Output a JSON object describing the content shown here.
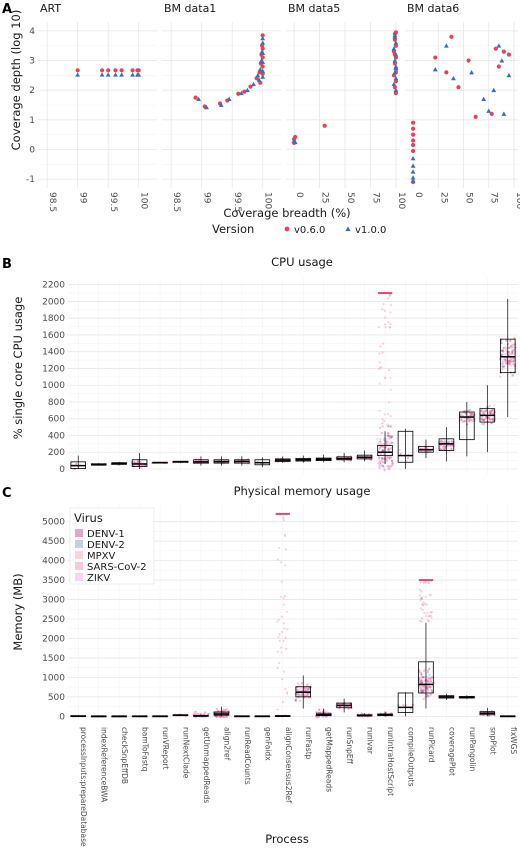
{
  "colors": {
    "v060": "#e8425a",
    "v100": "#3a70b0",
    "box": "#000000"
  },
  "panelA": {
    "letter": "A",
    "ylabel": "Coverage depth (log 10)",
    "xlabel": "Coverage breadth (%)",
    "legend_title": "Version",
    "legend": [
      {
        "label": "v0.6.0",
        "key": "v060"
      },
      {
        "label": "v1.0.0",
        "key": "v100"
      }
    ],
    "ylim": [
      -1.3,
      4.3
    ],
    "yticks": [
      -1,
      0,
      1,
      2,
      3,
      4
    ],
    "facets": [
      {
        "label": "ART",
        "xlim": [
          98.35,
          100.3
        ],
        "xticks": [
          98.5,
          99,
          99.5,
          100
        ],
        "v060": [
          [
            99,
            2.67
          ],
          [
            99.4,
            2.67
          ],
          [
            99.5,
            2.67
          ],
          [
            99.62,
            2.67
          ],
          [
            99.72,
            2.67
          ],
          [
            99.9,
            2.67
          ],
          [
            99.98,
            2.67
          ],
          [
            100,
            2.67
          ]
        ],
        "v100": [
          [
            99,
            2.52
          ],
          [
            99.4,
            2.52
          ],
          [
            99.5,
            2.52
          ],
          [
            99.62,
            2.52
          ],
          [
            99.72,
            2.52
          ],
          [
            99.9,
            2.52
          ],
          [
            99.98,
            2.52
          ],
          [
            100,
            2.52
          ]
        ]
      },
      {
        "label": "BM data1",
        "xlim": [
          98.35,
          100.3
        ],
        "xticks": [
          98.5,
          99,
          99.5,
          100
        ],
        "v060": [
          [
            98.9,
            1.75
          ],
          [
            99.05,
            1.45
          ],
          [
            99.3,
            1.55
          ],
          [
            99.42,
            1.65
          ],
          [
            99.6,
            1.88
          ],
          [
            99.7,
            1.95
          ],
          [
            99.8,
            2.12
          ],
          [
            99.9,
            2.4
          ],
          [
            99.95,
            2.6
          ],
          [
            99.97,
            2.9
          ],
          [
            99.98,
            3.2
          ],
          [
            99.99,
            3.5
          ],
          [
            100,
            3.85
          ],
          [
            100,
            2.8
          ],
          [
            100,
            3.1
          ],
          [
            100,
            3.4
          ],
          [
            99.96,
            2.25
          ],
          [
            100,
            2.55
          ]
        ],
        "v100": [
          [
            98.95,
            1.7
          ],
          [
            99.08,
            1.42
          ],
          [
            99.32,
            1.5
          ],
          [
            99.45,
            1.7
          ],
          [
            99.65,
            1.9
          ],
          [
            99.75,
            2.0
          ],
          [
            99.85,
            2.2
          ],
          [
            99.92,
            2.5
          ],
          [
            99.96,
            2.7
          ],
          [
            99.98,
            3.0
          ],
          [
            99.99,
            3.3
          ],
          [
            100,
            3.6
          ],
          [
            100,
            3.75
          ],
          [
            100,
            2.65
          ],
          [
            100,
            2.95
          ],
          [
            100,
            3.25
          ],
          [
            99.94,
            2.35
          ],
          [
            100,
            2.45
          ]
        ]
      },
      {
        "label": "BM data5",
        "xlim": [
          -8,
          104
        ],
        "xticks": [
          0,
          25,
          50,
          75,
          100
        ],
        "v060": [
          [
            0,
            0.35
          ],
          [
            1,
            0.42
          ],
          [
            0,
            0.22
          ],
          [
            30,
            0.8
          ],
          [
            99,
            3.9
          ],
          [
            99,
            3.7
          ],
          [
            100,
            3.5
          ],
          [
            98,
            3.3
          ],
          [
            100,
            3.1
          ],
          [
            99,
            2.9
          ],
          [
            100,
            2.7
          ],
          [
            98,
            2.5
          ],
          [
            100,
            2.3
          ],
          [
            99,
            2.1
          ],
          [
            100,
            1.9
          ],
          [
            100,
            3.95
          ],
          [
            99,
            3.2
          ],
          [
            100,
            2.6
          ]
        ],
        "v100": [
          [
            0,
            0.3
          ],
          [
            1,
            0.25
          ],
          [
            99,
            3.8
          ],
          [
            100,
            3.6
          ],
          [
            98,
            3.4
          ],
          [
            100,
            3.2
          ],
          [
            99,
            3.0
          ],
          [
            100,
            2.8
          ],
          [
            99,
            2.6
          ],
          [
            100,
            2.4
          ],
          [
            98,
            2.2
          ],
          [
            100,
            2.0
          ],
          [
            99,
            3.85
          ],
          [
            100,
            2.75
          ]
        ]
      },
      {
        "label": "BM data6",
        "xlim": [
          -8,
          104
        ],
        "xticks": [
          0,
          25,
          50,
          75,
          100
        ],
        "v060": [
          [
            0,
            0.9
          ],
          [
            0,
            0.7
          ],
          [
            0,
            0.5
          ],
          [
            0,
            0.3
          ],
          [
            0,
            0.15
          ],
          [
            0,
            -0.05
          ],
          [
            0,
            -1.1
          ],
          [
            22,
            3.1
          ],
          [
            33,
            2.6
          ],
          [
            38,
            3.8
          ],
          [
            45,
            2.1
          ],
          [
            55,
            3.0
          ],
          [
            62,
            1.1
          ],
          [
            78,
            1.2
          ],
          [
            82,
            3.4
          ],
          [
            85,
            2.8
          ],
          [
            90,
            3.3
          ],
          [
            95,
            3.2
          ]
        ],
        "v100": [
          [
            0,
            -0.3
          ],
          [
            0,
            -0.55
          ],
          [
            0,
            -0.75
          ],
          [
            0,
            -0.95
          ],
          [
            0,
            -1.05
          ],
          [
            22,
            2.7
          ],
          [
            33,
            3.5
          ],
          [
            40,
            2.4
          ],
          [
            58,
            2.6
          ],
          [
            70,
            1.7
          ],
          [
            75,
            1.3
          ],
          [
            80,
            2.0
          ],
          [
            85,
            3.5
          ],
          [
            90,
            1.2
          ],
          [
            95,
            2.5
          ],
          [
            88,
            3.0
          ]
        ]
      }
    ]
  },
  "panelB": {
    "letter": "B",
    "title": "CPU usage",
    "ylabel": "% single core CPU usage",
    "ylim": [
      -60,
      2280
    ],
    "yticks": [
      0,
      200,
      400,
      600,
      800,
      1000,
      1200,
      1400,
      1600,
      1800,
      2000,
      2200
    ],
    "boxes": [
      {
        "q1": 5,
        "med": 40,
        "q3": 85,
        "lo": 0,
        "hi": 160,
        "n": 6,
        "spread": 50
      },
      {
        "q1": 45,
        "med": 55,
        "q3": 62,
        "lo": 40,
        "hi": 70,
        "n": 10,
        "spread": 10
      },
      {
        "q1": 55,
        "med": 65,
        "q3": 75,
        "lo": 45,
        "hi": 85,
        "n": 12,
        "spread": 12
      },
      {
        "q1": 30,
        "med": 60,
        "q3": 110,
        "lo": 0,
        "hi": 190,
        "n": 40,
        "spread": 50
      },
      {
        "q1": 70,
        "med": 75,
        "q3": 80,
        "lo": 65,
        "hi": 85,
        "n": 8,
        "spread": 6
      },
      {
        "q1": 80,
        "med": 85,
        "q3": 92,
        "lo": 70,
        "hi": 100,
        "n": 10,
        "spread": 8
      },
      {
        "q1": 70,
        "med": 85,
        "q3": 110,
        "lo": 40,
        "hi": 150,
        "n": 30,
        "spread": 30
      },
      {
        "q1": 70,
        "med": 88,
        "q3": 110,
        "lo": 40,
        "hi": 150,
        "n": 30,
        "spread": 30
      },
      {
        "q1": 70,
        "med": 90,
        "q3": 110,
        "lo": 40,
        "hi": 150,
        "n": 30,
        "spread": 30
      },
      {
        "q1": 50,
        "med": 75,
        "q3": 110,
        "lo": 20,
        "hi": 140,
        "n": 6,
        "spread": 30
      },
      {
        "q1": 90,
        "med": 105,
        "q3": 120,
        "lo": 70,
        "hi": 150,
        "n": 30,
        "spread": 20
      },
      {
        "q1": 95,
        "med": 110,
        "q3": 125,
        "lo": 75,
        "hi": 160,
        "n": 30,
        "spread": 20
      },
      {
        "q1": 100,
        "med": 115,
        "q3": 130,
        "lo": 80,
        "hi": 170,
        "n": 30,
        "spread": 20
      },
      {
        "q1": 110,
        "med": 125,
        "q3": 145,
        "lo": 80,
        "hi": 190,
        "n": 35,
        "spread": 25
      },
      {
        "q1": 120,
        "med": 140,
        "q3": 165,
        "lo": 90,
        "hi": 220,
        "n": 35,
        "spread": 30
      },
      {
        "q1": 160,
        "med": 200,
        "q3": 280,
        "lo": 60,
        "hi": 450,
        "n": 120,
        "spread": 400,
        "hiOutliers": 2100
      },
      {
        "q1": 80,
        "med": 160,
        "q3": 450,
        "lo": 0,
        "hi": 480,
        "n": 5,
        "spread": 150
      },
      {
        "q1": 200,
        "med": 230,
        "q3": 270,
        "lo": 130,
        "hi": 350,
        "n": 40,
        "spread": 40
      },
      {
        "q1": 220,
        "med": 300,
        "q3": 360,
        "lo": 90,
        "hi": 500,
        "n": 70,
        "spread": 80
      },
      {
        "q1": 350,
        "med": 620,
        "q3": 680,
        "lo": 150,
        "hi": 800,
        "n": 60,
        "spread": 120
      },
      {
        "q1": 560,
        "med": 640,
        "q3": 720,
        "lo": 200,
        "hi": 1000,
        "n": 80,
        "spread": 120
      },
      {
        "q1": 1150,
        "med": 1340,
        "q3": 1550,
        "lo": 620,
        "hi": 2030,
        "n": 120,
        "spread": 250
      }
    ]
  },
  "panelC": {
    "letter": "C",
    "title": "Physical memory usage",
    "ylabel": "Memory (MB)",
    "xlabel": "Process",
    "ylim": [
      -120,
      5480
    ],
    "yticks": [
      0,
      500,
      1000,
      1500,
      2000,
      2500,
      3000,
      3500,
      4000,
      4500,
      5000
    ],
    "legend_title": "Virus",
    "legend": [
      "DENV-1",
      "DENV-2",
      "MPXV",
      "SARS-CoV-2",
      "ZIKV"
    ],
    "legend_colors": [
      "#c86aa6",
      "#9fb3c8",
      "#f4b5cc",
      "#f5a3c7",
      "#f2b8ec"
    ],
    "processes": [
      "processInputs:prepareDatabase",
      "indexReferenceBWA",
      "checkSnpEffDB",
      "bamToFastq",
      "runVReport",
      "runNextClade",
      "getUnmappedReads",
      "align2ref",
      "runReadCounts",
      "genFaidx",
      "alignConsensus2Ref",
      "runFastp",
      "getMappedReads",
      "runSnpEff",
      "runIvar",
      "runIntraHostScript",
      "compileOutputs",
      "runPicard",
      "coveragePlot",
      "runPangolin",
      "snpPlot",
      "fixWGS"
    ],
    "boxes": [
      {
        "q1": 5,
        "med": 8,
        "q3": 12,
        "lo": 0,
        "hi": 20,
        "n": 10,
        "spread": 5
      },
      {
        "q1": 2,
        "med": 4,
        "q3": 6,
        "lo": 0,
        "hi": 10,
        "n": 10,
        "spread": 3
      },
      {
        "q1": 2,
        "med": 4,
        "q3": 6,
        "lo": 0,
        "hi": 10,
        "n": 10,
        "spread": 3
      },
      {
        "q1": 2,
        "med": 4,
        "q3": 8,
        "lo": 0,
        "hi": 15,
        "n": 12,
        "spread": 4
      },
      {
        "q1": 3,
        "med": 5,
        "q3": 8,
        "lo": 0,
        "hi": 12,
        "n": 10,
        "spread": 4
      },
      {
        "q1": 20,
        "med": 30,
        "q3": 40,
        "lo": 10,
        "hi": 60,
        "n": 25,
        "spread": 15
      },
      {
        "q1": 5,
        "med": 10,
        "q3": 20,
        "lo": 0,
        "hi": 40,
        "n": 40,
        "spread": 120
      },
      {
        "q1": 30,
        "med": 60,
        "q3": 110,
        "lo": 0,
        "hi": 250,
        "n": 90,
        "spread": 160
      },
      {
        "q1": 3,
        "med": 5,
        "q3": 8,
        "lo": 0,
        "hi": 12,
        "n": 10,
        "spread": 4
      },
      {
        "q1": 3,
        "med": 5,
        "q3": 8,
        "lo": 0,
        "hi": 12,
        "n": 6,
        "spread": 4
      },
      {
        "q1": 5,
        "med": 10,
        "q3": 15,
        "lo": 0,
        "hi": 30,
        "n": 20,
        "spread": 10,
        "hiOutliers": 5200
      },
      {
        "q1": 500,
        "med": 620,
        "q3": 760,
        "lo": 200,
        "hi": 1050,
        "n": 100,
        "spread": 250
      },
      {
        "q1": 20,
        "med": 40,
        "q3": 80,
        "lo": 0,
        "hi": 200,
        "n": 50,
        "spread": 150
      },
      {
        "q1": 220,
        "med": 280,
        "q3": 340,
        "lo": 100,
        "hi": 450,
        "n": 60,
        "spread": 80
      },
      {
        "q1": 10,
        "med": 20,
        "q3": 40,
        "lo": 0,
        "hi": 80,
        "n": 40,
        "spread": 60
      },
      {
        "q1": 20,
        "med": 40,
        "q3": 60,
        "lo": 0,
        "hi": 120,
        "n": 40,
        "spread": 50
      },
      {
        "q1": 100,
        "med": 230,
        "q3": 600,
        "lo": 0,
        "hi": 620,
        "n": 5,
        "spread": 200
      },
      {
        "q1": 600,
        "med": 820,
        "q3": 1400,
        "lo": 200,
        "hi": 2400,
        "n": 130,
        "spread": 400,
        "hiOutliers": 3500
      },
      {
        "q1": 470,
        "med": 500,
        "q3": 530,
        "lo": 420,
        "hi": 580,
        "n": 40,
        "spread": 30
      },
      {
        "q1": 470,
        "med": 490,
        "q3": 510,
        "lo": 440,
        "hi": 540,
        "n": 30,
        "spread": 20
      },
      {
        "q1": 40,
        "med": 80,
        "q3": 120,
        "lo": 0,
        "hi": 220,
        "n": 40,
        "spread": 60
      },
      {
        "q1": 3,
        "med": 5,
        "q3": 8,
        "lo": 0,
        "hi": 12,
        "n": 10,
        "spread": 4
      }
    ]
  }
}
